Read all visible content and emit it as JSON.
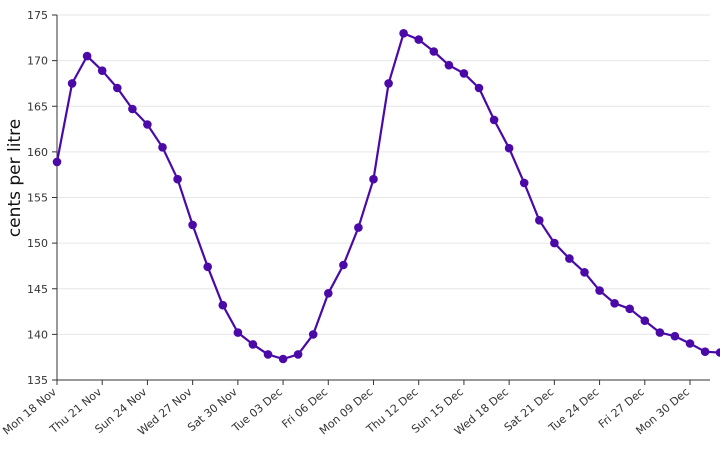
{
  "chart_data": {
    "type": "line",
    "title": "",
    "xlabel": "",
    "ylabel": "cents per litre",
    "ylim": [
      135,
      175
    ],
    "y_ticks": [
      135,
      140,
      145,
      150,
      155,
      160,
      165,
      170,
      175
    ],
    "grid": true,
    "legend": "none",
    "x_tick_labels": [
      "Mon 18 Nov",
      "Thu 21 Nov",
      "Sun 24 Nov",
      "Wed 27 Nov",
      "Sat 30 Nov",
      "Tue 03 Dec",
      "Fri 06 Dec",
      "Mon 09 Dec",
      "Thu 12 Dec",
      "Sun 15 Dec",
      "Wed 18 Dec",
      "Sat 21 Dec",
      "Tue 24 Dec",
      "Fri 27 Dec",
      "Mon 30 Dec"
    ],
    "x": [
      "18 Nov",
      "19 Nov",
      "20 Nov",
      "21 Nov",
      "22 Nov",
      "23 Nov",
      "24 Nov",
      "25 Nov",
      "26 Nov",
      "27 Nov",
      "28 Nov",
      "29 Nov",
      "30 Nov",
      "01 Dec",
      "02 Dec",
      "03 Dec",
      "04 Dec",
      "05 Dec",
      "06 Dec",
      "07 Dec",
      "08 Dec",
      "09 Dec",
      "10 Dec",
      "11 Dec",
      "12 Dec",
      "13 Dec",
      "14 Dec",
      "15 Dec",
      "16 Dec",
      "17 Dec",
      "18 Dec",
      "19 Dec",
      "20 Dec",
      "21 Dec",
      "22 Dec",
      "23 Dec",
      "24 Dec",
      "25 Dec",
      "26 Dec",
      "27 Dec",
      "28 Dec",
      "29 Dec",
      "30 Dec",
      "31 Dec",
      "01 Jan"
    ],
    "series": [
      {
        "color": "#4b0aa8",
        "values": [
          158.9,
          167.5,
          170.5,
          168.9,
          167.0,
          164.7,
          163.0,
          160.5,
          157.0,
          152.0,
          147.4,
          143.2,
          140.2,
          138.9,
          137.8,
          137.3,
          137.8,
          140.0,
          144.5,
          147.6,
          151.7,
          157.0,
          167.5,
          173.0,
          172.3,
          171.0,
          169.5,
          168.6,
          167.0,
          163.5,
          160.4,
          156.6,
          152.5,
          150.0,
          148.3,
          146.8,
          144.8,
          143.4,
          142.8,
          141.5,
          140.2,
          139.8,
          139.0,
          138.1,
          138.0
        ]
      }
    ]
  }
}
